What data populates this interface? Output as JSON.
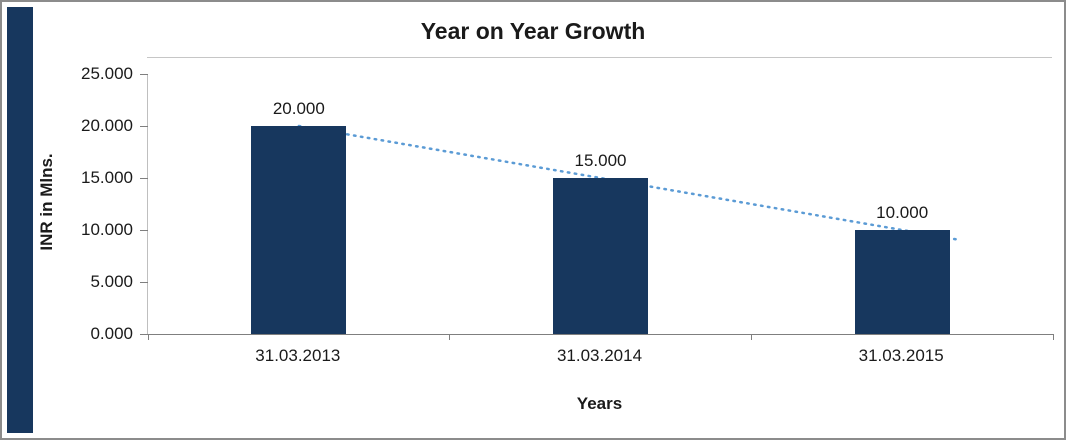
{
  "chart_data": {
    "type": "bar",
    "title": "Year on Year Growth",
    "xlabel": "Years",
    "ylabel": "INR in Mlns.",
    "categories": [
      "31.03.2013",
      "31.03.2014",
      "31.03.2015"
    ],
    "values": [
      20,
      15,
      10
    ],
    "data_labels": [
      "20.000",
      "15.000",
      "10.000"
    ],
    "yticks": [
      0,
      5,
      10,
      15,
      20,
      25
    ],
    "ytick_labels": [
      "0.000",
      "5.000",
      "10.000",
      "15.000",
      "20.000",
      "25.000"
    ],
    "ylim": [
      0,
      25
    ],
    "grid": false,
    "legend": false,
    "trendline": {
      "style": "dotted",
      "points": [
        20,
        15,
        10
      ]
    },
    "colors": {
      "bar": "#17375E",
      "strip": "#17375E",
      "trendline": "#5B9BD5",
      "axis": "#7f7f7f",
      "text": "#1a1a1a"
    }
  }
}
